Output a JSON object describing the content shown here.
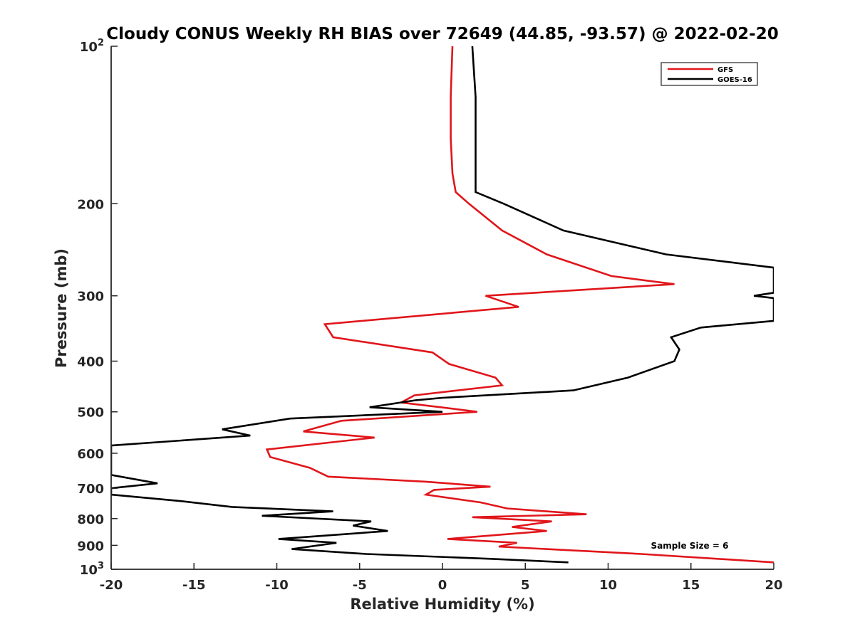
{
  "chart_data": {
    "type": "line",
    "title": "Cloudy CONUS Weekly RH BIAS over 72649 (44.85, -93.57) @ 2022-02-20",
    "xlabel": "Relative Humidity (%)",
    "ylabel": "Pressure (mb)",
    "xlim": [
      -20,
      20
    ],
    "ylim": [
      100,
      1000
    ],
    "y_scale": "log",
    "y_reversed": true,
    "x_ticks": [
      -20,
      -15,
      -10,
      -5,
      0,
      5,
      10,
      15,
      20
    ],
    "x_tick_labels": [
      "-20",
      "-15",
      "-10",
      "-5",
      "0",
      "5",
      "10",
      "15",
      "20"
    ],
    "y_ticks": [
      100,
      200,
      300,
      400,
      500,
      600,
      700,
      800,
      900,
      1000
    ],
    "y_tick_labels": [
      {
        "base": "10",
        "exp": "2"
      },
      {
        "base": "200",
        "exp": ""
      },
      {
        "base": "300",
        "exp": ""
      },
      {
        "base": "400",
        "exp": ""
      },
      {
        "base": "500",
        "exp": ""
      },
      {
        "base": "600",
        "exp": ""
      },
      {
        "base": "700",
        "exp": ""
      },
      {
        "base": "800",
        "exp": ""
      },
      {
        "base": "900",
        "exp": ""
      },
      {
        "base": "10",
        "exp": "3"
      }
    ],
    "grid": false,
    "legend_position": "top-right",
    "annotation": "Sample Size = 6",
    "series": [
      {
        "name": "GFS",
        "color": "#e0161b",
        "points": [
          [
            0.6,
            100
          ],
          [
            0.5,
            125
          ],
          [
            0.5,
            150
          ],
          [
            0.6,
            175
          ],
          [
            0.8,
            190
          ],
          [
            1.6,
            200
          ],
          [
            3.6,
            225
          ],
          [
            6.3,
            250
          ],
          [
            10.2,
            275
          ],
          [
            14.0,
            285
          ],
          [
            2.6,
            300
          ],
          [
            4.6,
            315
          ],
          [
            -7.1,
            340
          ],
          [
            -6.6,
            360
          ],
          [
            -0.6,
            385
          ],
          [
            0.4,
            405
          ],
          [
            3.2,
            430
          ],
          [
            3.6,
            445
          ],
          [
            -1.7,
            465
          ],
          [
            -2.5,
            480
          ],
          [
            -0.1,
            490
          ],
          [
            2.1,
            500
          ],
          [
            -6.1,
            520
          ],
          [
            -8.4,
            545
          ],
          [
            -4.1,
            560
          ],
          [
            -10.6,
            590
          ],
          [
            -10.4,
            610
          ],
          [
            -8.0,
            640
          ],
          [
            -6.9,
            665
          ],
          [
            -1.0,
            680
          ],
          [
            2.9,
            695
          ],
          [
            -0.5,
            705
          ],
          [
            -1.0,
            720
          ],
          [
            2.3,
            745
          ],
          [
            3.9,
            765
          ],
          [
            8.7,
            785
          ],
          [
            1.8,
            795
          ],
          [
            6.6,
            810
          ],
          [
            4.2,
            830
          ],
          [
            6.3,
            845
          ],
          [
            0.3,
            875
          ],
          [
            4.5,
            890
          ],
          [
            3.4,
            905
          ],
          [
            12.0,
            935
          ],
          [
            20.0,
            970
          ]
        ]
      },
      {
        "name": "GOES-16",
        "color": "#000000",
        "points": [
          [
            1.8,
            100
          ],
          [
            2.0,
            125
          ],
          [
            2.0,
            150
          ],
          [
            2.0,
            175
          ],
          [
            2.0,
            190
          ],
          [
            3.7,
            200
          ],
          [
            7.3,
            225
          ],
          [
            13.5,
            250
          ],
          [
            20.0,
            265
          ],
          [
            20.0,
            296
          ],
          [
            18.8,
            300
          ],
          [
            20.0,
            303
          ],
          [
            20.0,
            335
          ],
          [
            15.6,
            345
          ],
          [
            13.8,
            360
          ],
          [
            14.3,
            380
          ],
          [
            14.0,
            400
          ],
          [
            11.2,
            430
          ],
          [
            7.9,
            455
          ],
          [
            0.0,
            470
          ],
          [
            -1.6,
            475
          ],
          [
            -4.4,
            490
          ],
          [
            0.0,
            500
          ],
          [
            -9.2,
            515
          ],
          [
            -13.3,
            540
          ],
          [
            -11.6,
            555
          ],
          [
            -20.0,
            580
          ],
          [
            -20.0,
            660
          ],
          [
            -17.2,
            685
          ],
          [
            -20.0,
            700
          ],
          [
            -20.0,
            720
          ],
          [
            -15.9,
            740
          ],
          [
            -12.7,
            760
          ],
          [
            -6.6,
            775
          ],
          [
            -10.9,
            790
          ],
          [
            -4.3,
            810
          ],
          [
            -5.4,
            825
          ],
          [
            -3.3,
            845
          ],
          [
            -9.9,
            875
          ],
          [
            -6.4,
            890
          ],
          [
            -9.1,
            915
          ],
          [
            -4.6,
            935
          ],
          [
            2.9,
            955
          ],
          [
            7.6,
            970
          ]
        ]
      }
    ]
  }
}
